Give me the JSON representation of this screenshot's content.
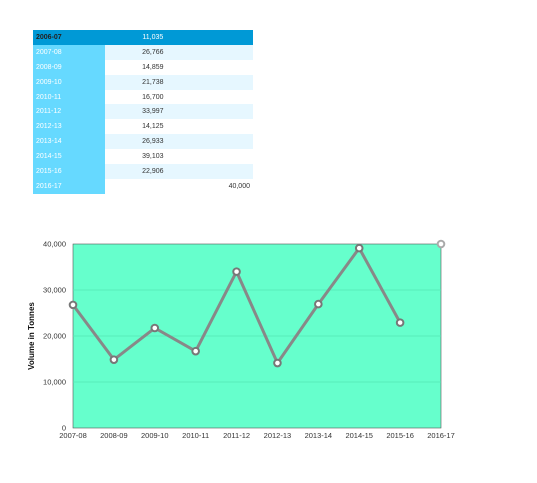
{
  "table": {
    "rows": [
      {
        "year": "2006-07",
        "value": "11,035",
        "extra": ""
      },
      {
        "year": "2007-08",
        "value": "26,766",
        "extra": ""
      },
      {
        "year": "2008-09",
        "value": "14,859",
        "extra": ""
      },
      {
        "year": "2009-10",
        "value": "21,738",
        "extra": ""
      },
      {
        "year": "2010-11",
        "value": "16,700",
        "extra": ""
      },
      {
        "year": "2011-12",
        "value": "33,997",
        "extra": ""
      },
      {
        "year": "2012-13",
        "value": "14,125",
        "extra": ""
      },
      {
        "year": "2013-14",
        "value": "26,933",
        "extra": ""
      },
      {
        "year": "2014-15",
        "value": "39,103",
        "extra": ""
      },
      {
        "year": "2015-16",
        "value": "22,906",
        "extra": ""
      },
      {
        "year": "2016-17",
        "value": "",
        "extra": "40,000"
      }
    ]
  },
  "chart_data": {
    "type": "line",
    "categories": [
      "2007-08",
      "2008-09",
      "2009-10",
      "2010-11",
      "2011-12",
      "2012-13",
      "2013-14",
      "2014-15",
      "2015-16",
      "2016-17"
    ],
    "series": [
      {
        "values": [
          26766,
          14859,
          21738,
          16700,
          33997,
          14125,
          26933,
          39103,
          22906,
          null
        ]
      }
    ],
    "extra_point": {
      "category": "2016-17",
      "value": 40000
    },
    "ylabel": "Volume in Tonnes",
    "ylim": [
      0,
      40000
    ],
    "yticks": [
      "0",
      "10,000",
      "20,000",
      "30,000",
      "40,000"
    ],
    "ytick_values": [
      0,
      10000,
      20000,
      30000,
      40000
    ],
    "grid": true,
    "colors": {
      "plot_bg": "#66ffcc",
      "line": "#888888",
      "marker_fill": "#ffffff"
    }
  }
}
